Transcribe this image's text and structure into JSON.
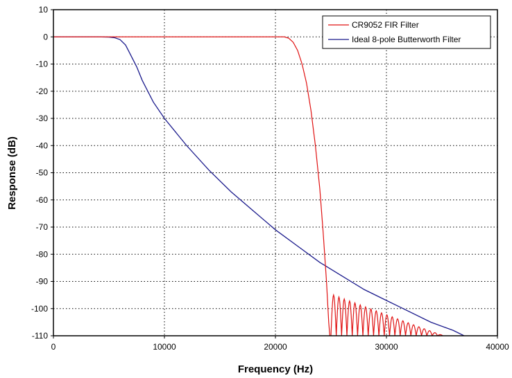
{
  "chart_data": {
    "type": "line",
    "title": "",
    "xlabel": "Frequency (Hz)",
    "ylabel": "Response (dB)",
    "xlim": [
      0,
      40000
    ],
    "ylim": [
      -110,
      10
    ],
    "x_ticks": [
      0,
      10000,
      20000,
      30000,
      40000
    ],
    "y_ticks": [
      10,
      0,
      -10,
      -20,
      -30,
      -40,
      -50,
      -60,
      -70,
      -80,
      -90,
      -100,
      -110
    ],
    "grid": "dotted",
    "legend_position": "top-right",
    "series": [
      {
        "name": "CR9052 FIR Filter",
        "color": "#e01010",
        "stopband_ripple": "lobes below -95 dB from 25000 Hz, decaying to -110 dB near 35000 Hz",
        "points": [
          [
            0,
            0
          ],
          [
            5000,
            0
          ],
          [
            10000,
            0
          ],
          [
            15000,
            0
          ],
          [
            20000,
            0
          ],
          [
            20800,
            0
          ],
          [
            21200,
            -0.5
          ],
          [
            21600,
            -2
          ],
          [
            22000,
            -5
          ],
          [
            22400,
            -10
          ],
          [
            22800,
            -17
          ],
          [
            23200,
            -27
          ],
          [
            23600,
            -40
          ],
          [
            24000,
            -56
          ],
          [
            24300,
            -72
          ],
          [
            24600,
            -90
          ],
          [
            24800,
            -105
          ],
          [
            24900,
            -110
          ]
        ]
      },
      {
        "name": "Ideal 8-pole Butterworth Filter",
        "color": "#1a1a8c",
        "points": [
          [
            0,
            0
          ],
          [
            4000,
            0
          ],
          [
            5000,
            -0.1
          ],
          [
            5500,
            -0.3
          ],
          [
            6000,
            -1
          ],
          [
            6500,
            -3
          ],
          [
            7000,
            -7
          ],
          [
            7500,
            -11
          ],
          [
            8000,
            -16
          ],
          [
            9000,
            -24
          ],
          [
            10000,
            -30
          ],
          [
            12000,
            -40
          ],
          [
            14000,
            -49
          ],
          [
            16000,
            -57
          ],
          [
            18000,
            -64
          ],
          [
            20000,
            -71
          ],
          [
            22000,
            -77
          ],
          [
            24000,
            -83
          ],
          [
            26000,
            -88
          ],
          [
            28000,
            -93
          ],
          [
            30000,
            -97
          ],
          [
            31000,
            -99
          ],
          [
            34000,
            -105
          ],
          [
            36000,
            -108
          ],
          [
            37000,
            -110
          ]
        ]
      }
    ]
  }
}
